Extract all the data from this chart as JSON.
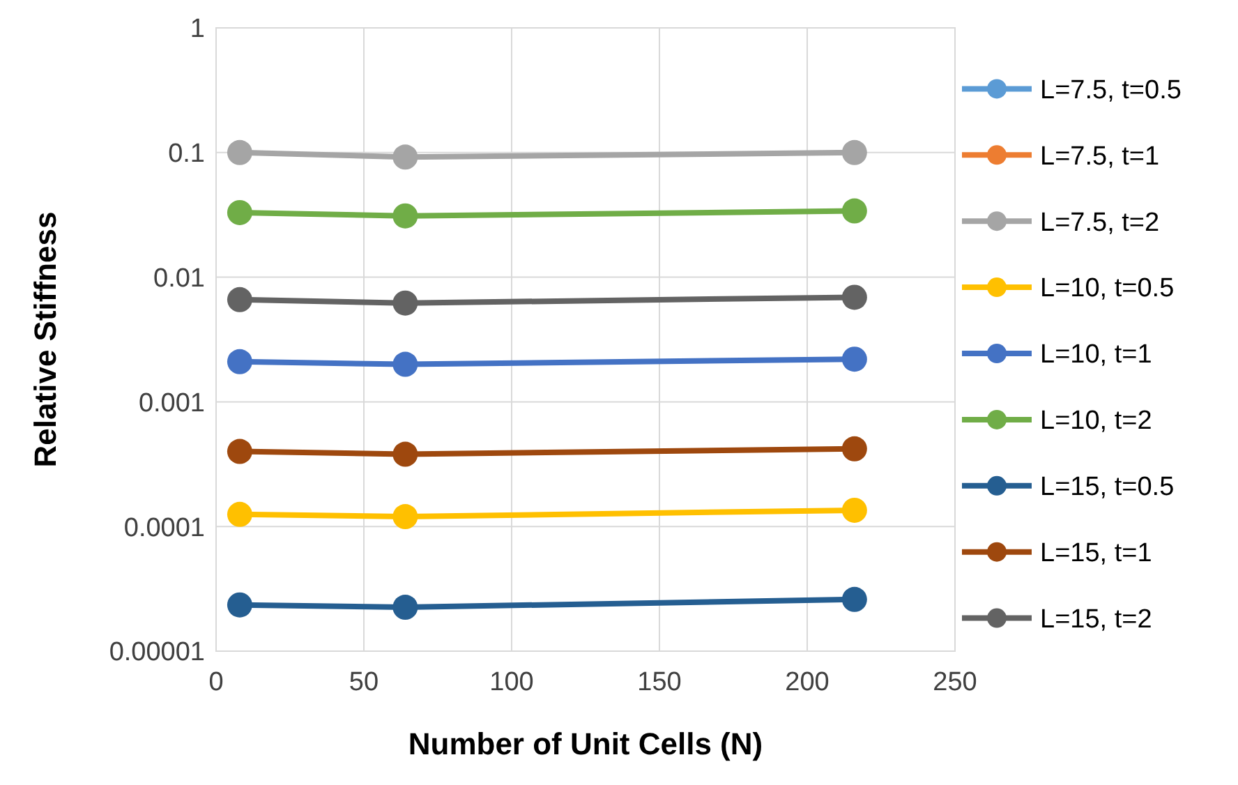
{
  "chart_data": {
    "type": "line",
    "xlabel": "Number of Unit Cells (N)",
    "ylabel": "Relative Stiffness",
    "x": [
      8,
      64,
      216
    ],
    "series": [
      {
        "name": "L=7.5, t=0.5",
        "color": "#5b9bd5",
        "values": [
          null,
          null,
          null
        ]
      },
      {
        "name": "L=7.5, t=1",
        "color": "#ed7d31",
        "values": [
          null,
          null,
          null
        ]
      },
      {
        "name": "L=7.5, t=2",
        "color": "#a5a5a5",
        "values": [
          0.1,
          0.092,
          0.1
        ]
      },
      {
        "name": "L=10, t=0.5",
        "color": "#ffc000",
        "values": [
          0.000125,
          0.00012,
          0.000135
        ]
      },
      {
        "name": "L=10, t=1",
        "color": "#4472c4",
        "values": [
          0.0021,
          0.002,
          0.0022
        ]
      },
      {
        "name": "L=10, t=2",
        "color": "#70ad47",
        "values": [
          0.033,
          0.031,
          0.034
        ]
      },
      {
        "name": "L=15, t=0.5",
        "color": "#255e91",
        "values": [
          2.35e-05,
          2.25e-05,
          2.6e-05
        ]
      },
      {
        "name": "L=15, t=1",
        "color": "#9e480e",
        "values": [
          0.0004,
          0.00038,
          0.00042
        ]
      },
      {
        "name": "L=15, t=2",
        "color": "#636363",
        "values": [
          0.0066,
          0.0062,
          0.0069
        ]
      }
    ],
    "xlim": [
      0,
      250
    ],
    "xticks": [
      0,
      50,
      100,
      150,
      200,
      250
    ],
    "ylim": [
      1e-05,
      1
    ],
    "yticks": [
      {
        "value": 1e-05,
        "label": "0.00001"
      },
      0.0001,
      0.001,
      0.01,
      0.1,
      1
    ],
    "log": "y",
    "grid": true,
    "legend": "right",
    "marker": "circle",
    "line_style": "solid"
  }
}
